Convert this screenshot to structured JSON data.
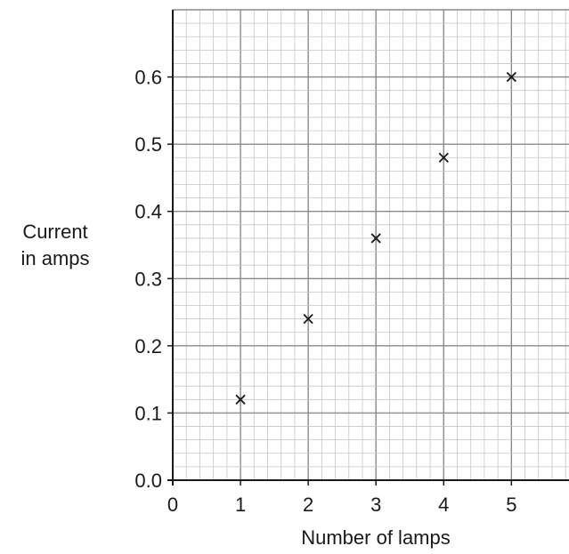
{
  "chart_data": {
    "type": "scatter",
    "marker": "x",
    "x": [
      1,
      2,
      3,
      4,
      5
    ],
    "y": [
      0.12,
      0.24,
      0.36,
      0.48,
      0.6
    ],
    "xlabel": "Number of lamps",
    "ylabel_lines": [
      "Current",
      "in amps"
    ],
    "x_ticks": [
      "0",
      "1",
      "2",
      "3",
      "4",
      "5"
    ],
    "y_ticks": [
      "0.0",
      "0.1",
      "0.2",
      "0.3",
      "0.4",
      "0.5",
      "0.6"
    ],
    "xlim": [
      0,
      5.85
    ],
    "ylim": [
      0,
      0.7
    ],
    "grid": true,
    "grid_minor_per_major": 5,
    "colors": {
      "major_grid": "#8a8a8a",
      "minor_grid": "#c6c6c6",
      "axis": "#1a1a1a",
      "marker": "#1a1a1a"
    }
  }
}
